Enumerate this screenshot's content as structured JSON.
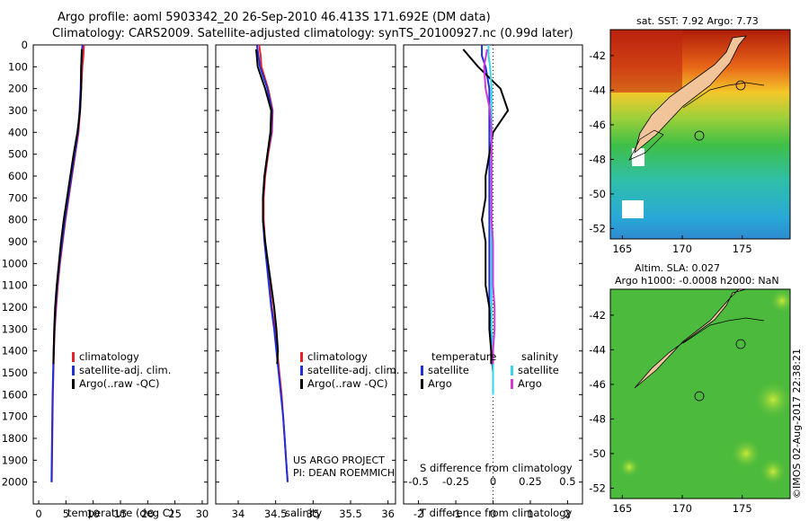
{
  "header": {
    "title_line1": "Argo profile: aoml 5903342_20 26-Sep-2010 46.413S 171.692E (DM data)",
    "title_line2": "Climatology: CARS2009. Satellite-adjusted climatology: synTS_20100927.nc (0.99d later)"
  },
  "colors": {
    "climatology": "#e8202a",
    "satellite": "#1e2fd8",
    "argo": "#000000",
    "sat_salinity": "#32d8e8",
    "argo_salinity": "#d23ad8",
    "land": "#f2c49a"
  },
  "chart_data": [
    {
      "type": "line",
      "name": "temperature-profile",
      "xlabel": "temperature (deg C)",
      "ylabel": "",
      "xlim": [
        -1,
        31
      ],
      "ylim": [
        2100,
        0
      ],
      "xticks": [
        0,
        5,
        10,
        15,
        20,
        25,
        30
      ],
      "yticks": [
        0,
        100,
        200,
        300,
        400,
        500,
        600,
        700,
        800,
        900,
        1000,
        1100,
        1200,
        1300,
        1400,
        1500,
        1600,
        1700,
        1800,
        1900,
        2000
      ],
      "series": [
        {
          "name": "climatology",
          "depth": [
            0,
            50,
            100,
            200,
            300,
            400,
            500,
            600,
            700,
            800,
            900,
            1000,
            1100,
            1200,
            1300,
            1400,
            1500,
            1600,
            1700,
            1800,
            1900,
            2000
          ],
          "values": [
            8.3,
            8.2,
            8.0,
            7.8,
            7.6,
            7.3,
            6.7,
            6.1,
            5.5,
            4.9,
            4.4,
            3.9,
            3.5,
            3.2,
            2.95,
            2.8,
            2.7,
            2.6,
            2.55,
            2.5,
            2.45,
            2.4
          ]
        },
        {
          "name": "satellite-adj. clim.",
          "depth": [
            0,
            50,
            100,
            200,
            300,
            400,
            500,
            600,
            700,
            800,
            900,
            1000,
            1100,
            1200,
            1300,
            1400,
            1500,
            1600,
            1700,
            1800,
            1900,
            2000
          ],
          "values": [
            8.0,
            7.9,
            7.8,
            7.7,
            7.5,
            7.2,
            6.6,
            6.0,
            5.4,
            4.8,
            4.3,
            3.8,
            3.4,
            3.1,
            2.9,
            2.75,
            2.65,
            2.55,
            2.5,
            2.45,
            2.4,
            2.35
          ]
        },
        {
          "name": "Argo(..raw -QC)",
          "depth": [
            20,
            100,
            200,
            300,
            400,
            500,
            600,
            700,
            800,
            900,
            1000,
            1100,
            1200,
            1300,
            1400,
            1460
          ],
          "values": [
            7.9,
            7.8,
            7.8,
            7.6,
            7.1,
            6.4,
            5.8,
            5.2,
            4.6,
            4.1,
            3.7,
            3.3,
            3.0,
            2.85,
            2.75,
            2.7
          ]
        }
      ],
      "legend": [
        "climatology",
        "satellite-adj. clim.",
        "Argo(..raw -QC)"
      ]
    },
    {
      "type": "line",
      "name": "salinity-profile",
      "xlabel": "salinity",
      "xlim": [
        33.7,
        36.1
      ],
      "ylim": [
        2100,
        0
      ],
      "xticks": [
        34,
        34.5,
        35,
        35.5,
        36
      ],
      "series": [
        {
          "name": "climatology",
          "depth": [
            0,
            50,
            100,
            200,
            300,
            400,
            500,
            600,
            700,
            800,
            900,
            1000,
            1100,
            1200,
            1300,
            1400,
            1500,
            1600,
            1700,
            1800,
            1900,
            2000
          ],
          "values": [
            34.28,
            34.3,
            34.31,
            34.4,
            34.46,
            34.45,
            34.4,
            34.36,
            34.34,
            34.34,
            34.36,
            34.39,
            34.42,
            34.45,
            34.49,
            34.52,
            34.55,
            34.58,
            34.6,
            34.62,
            34.64,
            34.66
          ]
        },
        {
          "name": "satellite-adj. clim.",
          "depth": [
            0,
            50,
            100,
            200,
            300,
            400,
            500,
            600,
            700,
            800,
            900,
            1000,
            1100,
            1200,
            1300,
            1400,
            1500,
            1600,
            1700,
            1800,
            1900,
            2000
          ],
          "values": [
            34.25,
            34.27,
            34.29,
            34.39,
            34.45,
            34.44,
            34.39,
            34.35,
            34.33,
            34.33,
            34.35,
            34.38,
            34.41,
            34.44,
            34.48,
            34.51,
            34.54,
            34.57,
            34.6,
            34.62,
            34.64,
            34.66
          ]
        },
        {
          "name": "Argo(..raw -QC)",
          "depth": [
            20,
            100,
            200,
            300,
            400,
            500,
            600,
            700,
            800,
            900,
            1000,
            1100,
            1200,
            1300,
            1400,
            1460
          ],
          "values": [
            34.24,
            34.26,
            34.36,
            34.44,
            34.43,
            34.39,
            34.35,
            34.33,
            34.33,
            34.36,
            34.4,
            34.44,
            34.48,
            34.51,
            34.53,
            34.52
          ]
        }
      ],
      "legend": [
        "climatology",
        "satellite-adj. clim.",
        "Argo(..raw -QC)"
      ]
    },
    {
      "type": "line",
      "name": "difference-profile",
      "xlabel_T": "T difference from climatology",
      "xlabel_S": "S difference from climatology",
      "xlim": [
        -2.4,
        2.4
      ],
      "ylim": [
        2100,
        0
      ],
      "xticks_T": [
        -2,
        -1,
        0,
        1,
        2
      ],
      "xticks_S": [
        -0.5,
        -0.25,
        0,
        0.25,
        0.5
      ],
      "xticklabels_S": [
        "-0.5",
        "-0.25",
        "0",
        "0.25",
        "0.5"
      ],
      "series": [
        {
          "name": "temperature satellite",
          "depth": [
            0,
            50,
            100,
            200,
            300,
            400,
            500,
            600,
            700,
            800,
            900,
            1000,
            1100,
            1200,
            1300,
            1400,
            1500,
            1600
          ],
          "values": [
            -0.3,
            -0.3,
            -0.2,
            -0.1,
            -0.1,
            -0.1,
            -0.1,
            -0.1,
            -0.1,
            -0.1,
            -0.1,
            -0.1,
            -0.1,
            -0.1,
            -0.05,
            -0.05,
            0,
            0
          ]
        },
        {
          "name": "temperature Argo",
          "depth": [
            20,
            100,
            200,
            300,
            400,
            500,
            600,
            700,
            800,
            900,
            1000,
            1100,
            1200,
            1300,
            1400,
            1460
          ],
          "values": [
            -0.8,
            -0.4,
            0.2,
            0.4,
            0.0,
            -0.1,
            -0.2,
            -0.2,
            -0.3,
            -0.2,
            -0.2,
            -0.2,
            -0.1,
            -0.1,
            -0.05,
            -0.05
          ]
        },
        {
          "name": "salinity satellite",
          "depth": [
            0,
            50,
            100,
            200,
            300,
            400,
            500,
            600,
            700,
            800,
            900,
            1000,
            1100,
            1200,
            1300,
            1400,
            1500,
            1600
          ],
          "values": [
            -0.03,
            -0.03,
            -0.02,
            -0.01,
            -0.01,
            -0.01,
            -0.01,
            -0.01,
            -0.01,
            -0.01,
            -0.01,
            -0.01,
            -0.01,
            -0.01,
            -0.01,
            0,
            0,
            0
          ]
        },
        {
          "name": "salinity Argo",
          "depth": [
            20,
            100,
            200,
            300,
            400,
            500,
            600,
            700,
            800,
            900,
            1000,
            1100,
            1200,
            1300,
            1400,
            1460
          ],
          "values": [
            -0.04,
            -0.06,
            -0.05,
            -0.02,
            -0.01,
            -0.01,
            -0.01,
            -0.01,
            -0.01,
            0,
            0,
            0,
            0.01,
            0.01,
            0,
            0
          ]
        }
      ],
      "legend_temperature_heading": "temperature",
      "legend_salinity_heading": "salinity",
      "legend_temperature": [
        "satellite",
        "Argo"
      ],
      "legend_salinity": [
        "satellite",
        "Argo"
      ]
    },
    {
      "type": "heatmap",
      "name": "sst-map",
      "title": "sat. SST: 7.92 Argo: 7.73",
      "xlim": [
        164,
        179
      ],
      "ylim": [
        -52.6,
        -40.5
      ],
      "xticks": [
        165,
        170,
        175
      ],
      "yticks": [
        -42,
        -44,
        -46,
        -48,
        -50,
        -52
      ],
      "float_position": {
        "lon": 171.692,
        "lat": -46.413
      }
    },
    {
      "type": "heatmap",
      "name": "sla-map",
      "title_line1": "Altim. SLA: 0.027",
      "title_line2": "Argo h1000: -0.0008 h2000: NaN",
      "xlim": [
        164,
        179
      ],
      "ylim": [
        -52.6,
        -40.5
      ],
      "xticks": [
        165,
        170,
        175
      ],
      "yticks": [
        -42,
        -44,
        -46,
        -48,
        -50,
        -52
      ],
      "float_position": {
        "lon": 171.692,
        "lat": -46.413
      }
    }
  ],
  "credits": {
    "project": "US ARGO PROJECT",
    "pi": "PI: DEAN ROEMMICH"
  },
  "stamp": "©IMOS 02-Aug-2017 22:38:21"
}
